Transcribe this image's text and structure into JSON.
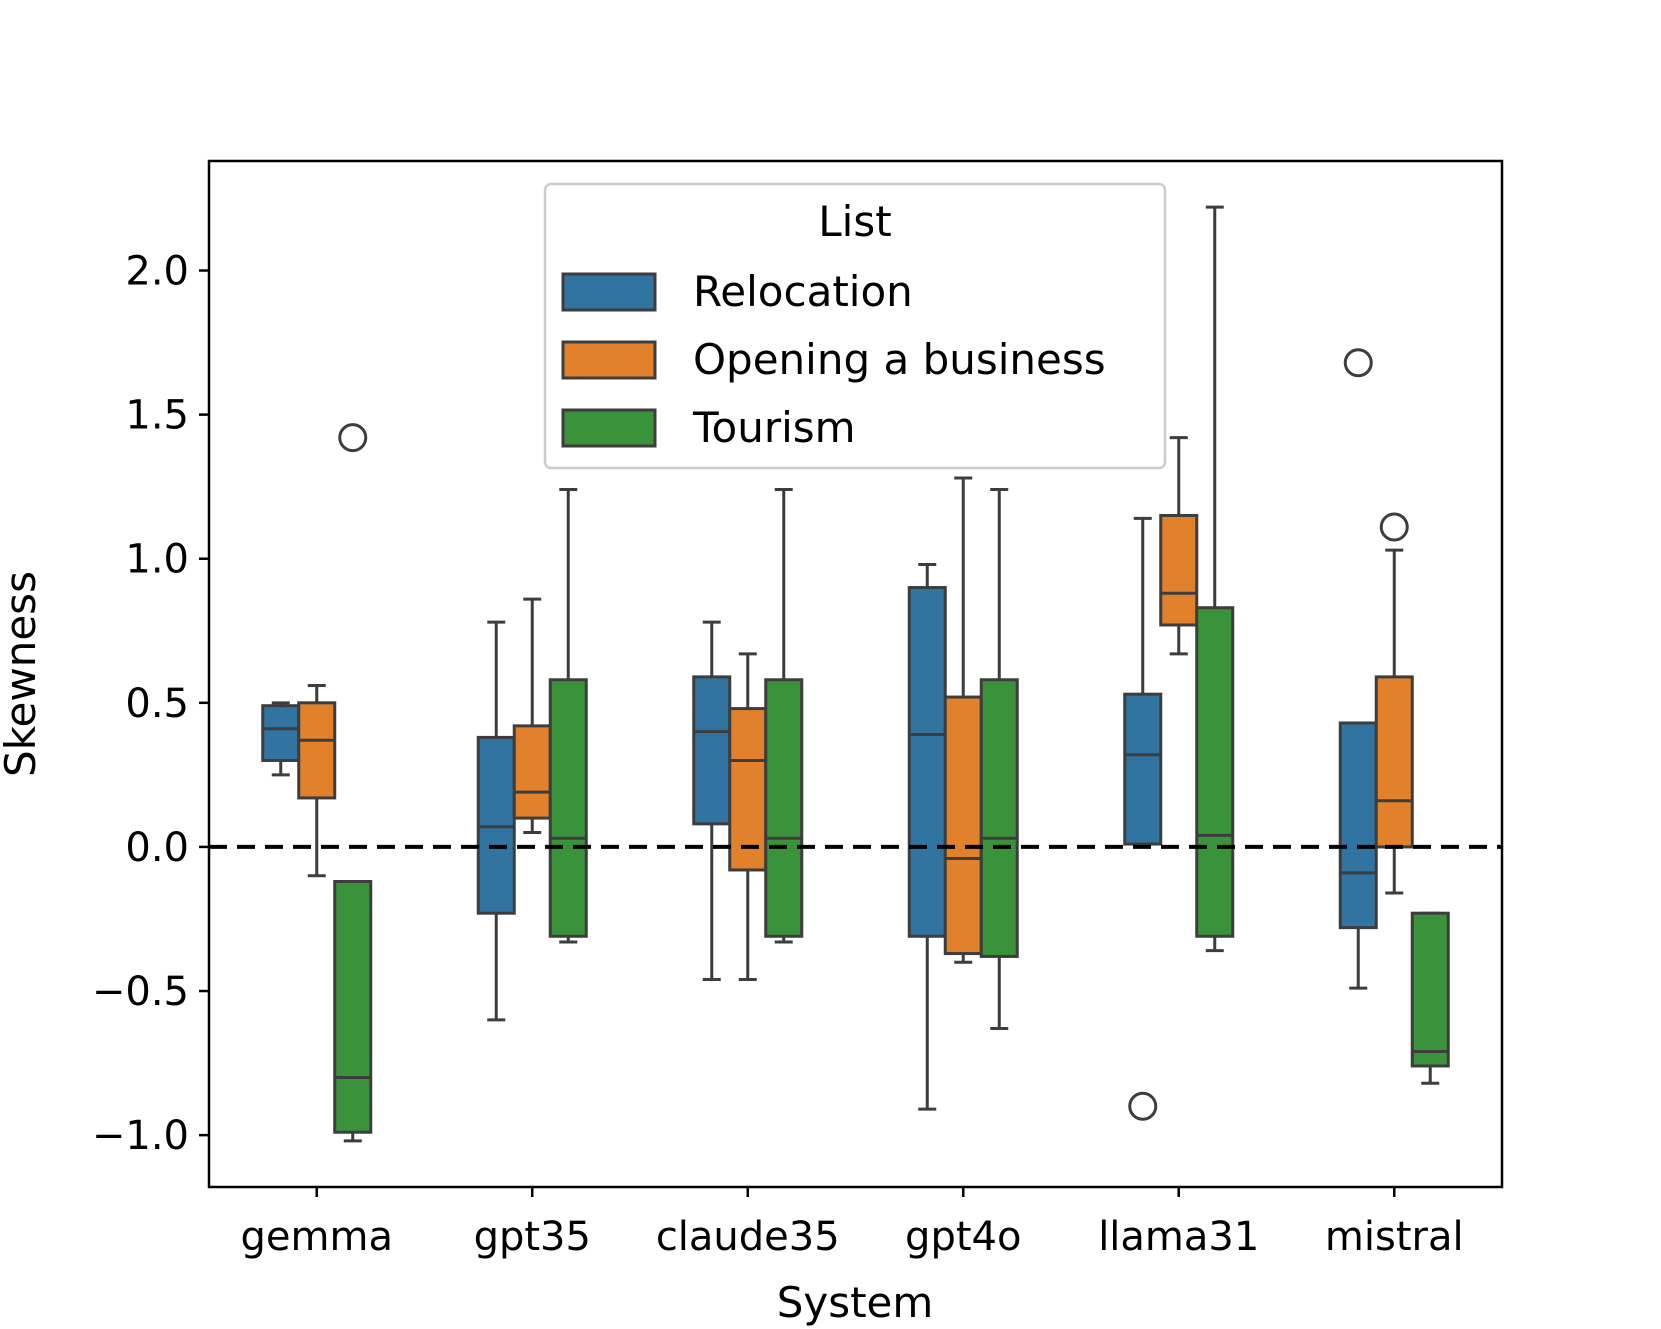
{
  "chart_data": {
    "type": "box",
    "title": "",
    "xlabel": "System",
    "ylabel": "Skewness",
    "ylim": [
      -1.18,
      2.38
    ],
    "yticks": [
      -1.0,
      -0.5,
      0.0,
      0.5,
      1.0,
      1.5,
      2.0
    ],
    "ytick_labels": [
      "−1.0",
      "−0.5",
      "0.0",
      "0.5",
      "1.0",
      "1.5",
      "2.0"
    ],
    "categories": [
      "gemma",
      "gpt35",
      "claude35",
      "gpt4o",
      "llama31",
      "mistral"
    ],
    "reference_line": 0.0,
    "legend": {
      "title": "List",
      "position": "upper-center"
    },
    "series": [
      {
        "name": "Relocation",
        "color": "#3274a1",
        "boxes": [
          {
            "whislo": 0.25,
            "q1": 0.3,
            "med": 0.41,
            "q3": 0.49,
            "whishi": 0.5,
            "fliers": []
          },
          {
            "whislo": -0.6,
            "q1": -0.23,
            "med": 0.07,
            "q3": 0.38,
            "whishi": 0.78,
            "fliers": []
          },
          {
            "whislo": -0.46,
            "q1": 0.08,
            "med": 0.4,
            "q3": 0.59,
            "whishi": 0.78,
            "fliers": []
          },
          {
            "whislo": -0.91,
            "q1": -0.31,
            "med": 0.39,
            "q3": 0.9,
            "whishi": 0.98,
            "fliers": []
          },
          {
            "whislo": 0.01,
            "q1": 0.01,
            "med": 0.32,
            "q3": 0.53,
            "whishi": 1.14,
            "fliers": [
              -0.9
            ]
          },
          {
            "whislo": -0.49,
            "q1": -0.28,
            "med": -0.09,
            "q3": 0.43,
            "whishi": 0.43,
            "fliers": [
              1.68
            ]
          }
        ]
      },
      {
        "name": "Opening a business",
        "color": "#e1812c",
        "boxes": [
          {
            "whislo": -0.1,
            "q1": 0.17,
            "med": 0.37,
            "q3": 0.5,
            "whishi": 0.56,
            "fliers": []
          },
          {
            "whislo": 0.05,
            "q1": 0.1,
            "med": 0.19,
            "q3": 0.42,
            "whishi": 0.86,
            "fliers": []
          },
          {
            "whislo": -0.46,
            "q1": -0.08,
            "med": 0.3,
            "q3": 0.48,
            "whishi": 0.67,
            "fliers": []
          },
          {
            "whislo": -0.4,
            "q1": -0.37,
            "med": -0.04,
            "q3": 0.52,
            "whishi": 1.28,
            "fliers": []
          },
          {
            "whislo": 0.67,
            "q1": 0.77,
            "med": 0.88,
            "q3": 1.15,
            "whishi": 1.42,
            "fliers": []
          },
          {
            "whislo": -0.16,
            "q1": 0.0,
            "med": 0.16,
            "q3": 0.59,
            "whishi": 1.03,
            "fliers": [
              1.11
            ]
          }
        ]
      },
      {
        "name": "Tourism",
        "color": "#3a923a",
        "boxes": [
          {
            "whislo": -1.02,
            "q1": -0.99,
            "med": -0.8,
            "q3": -0.12,
            "whishi": -0.12,
            "fliers": [
              1.42
            ]
          },
          {
            "whislo": -0.33,
            "q1": -0.31,
            "med": 0.03,
            "q3": 0.58,
            "whishi": 1.24,
            "fliers": []
          },
          {
            "whislo": -0.33,
            "q1": -0.31,
            "med": 0.03,
            "q3": 0.58,
            "whishi": 1.24,
            "fliers": []
          },
          {
            "whislo": -0.63,
            "q1": -0.38,
            "med": 0.03,
            "q3": 0.58,
            "whishi": 1.24,
            "fliers": []
          },
          {
            "whislo": -0.36,
            "q1": -0.31,
            "med": 0.04,
            "q3": 0.83,
            "whishi": 2.22,
            "fliers": []
          },
          {
            "whislo": -0.82,
            "q1": -0.76,
            "med": -0.71,
            "q3": -0.23,
            "whishi": -0.23,
            "fliers": []
          }
        ]
      }
    ]
  }
}
